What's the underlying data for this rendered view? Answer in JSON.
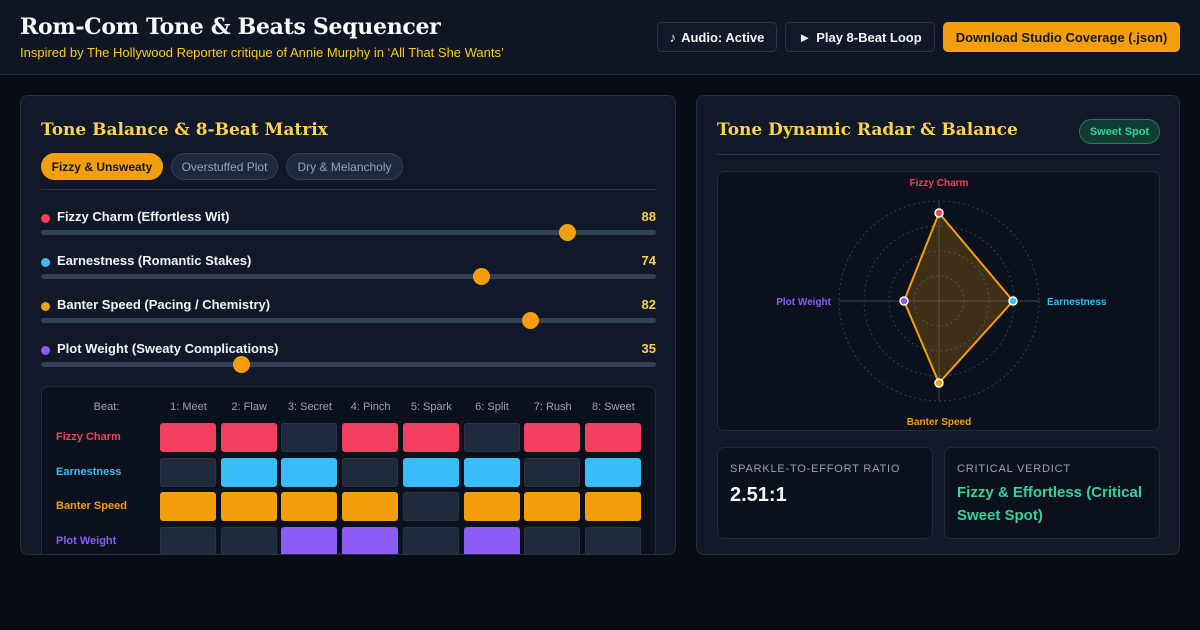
{
  "header": {
    "title": "Rom-Com Tone & Beats Sequencer",
    "subtitle": "Inspired by The Hollywood Reporter critique of Annie Murphy in ‘All That She Wants’",
    "audio_button": "Audio: Active",
    "audio_icon": "music-note-icon",
    "play_button": "Play 8-Beat Loop",
    "play_icon": "play-icon",
    "download_button": "Download Studio Coverage (.json)"
  },
  "left_panel": {
    "title": "Tone Balance & 8-Beat Matrix",
    "presets": [
      {
        "label": "Fizzy & Unsweaty",
        "active": true
      },
      {
        "label": "Overstuffed Plot",
        "active": false
      },
      {
        "label": "Dry & Melancholy",
        "active": false
      }
    ],
    "sliders": [
      {
        "label": "Fizzy Charm (Effortless Wit)",
        "value": 88,
        "color": "#f43f5e"
      },
      {
        "label": "Earnestness (Romantic Stakes)",
        "value": 74,
        "color": "#38bdf8"
      },
      {
        "label": "Banter Speed (Pacing / Chemistry)",
        "value": 82,
        "color": "#f59e0b"
      },
      {
        "label": "Plot Weight (Sweaty Complications)",
        "value": 35,
        "color": "#8b5cf6"
      }
    ],
    "matrix": {
      "corner_label": "Beat:",
      "beats": [
        "1: Meet",
        "2: Flaw",
        "3: Secret",
        "4: Pinch",
        "5: Spark",
        "6: Split",
        "7: Rush",
        "8: Sweet"
      ],
      "rows": [
        {
          "label": "Fizzy Charm",
          "color": "#f43f5e",
          "cells": [
            1,
            1,
            0,
            1,
            1,
            0,
            1,
            1
          ]
        },
        {
          "label": "Earnestness",
          "color": "#38bdf8",
          "cells": [
            0,
            1,
            1,
            0,
            1,
            1,
            0,
            1
          ]
        },
        {
          "label": "Banter Speed",
          "color": "#f59e0b",
          "cells": [
            1,
            1,
            1,
            1,
            0,
            1,
            1,
            1
          ]
        },
        {
          "label": "Plot Weight",
          "color": "#8b5cf6",
          "cells": [
            0,
            0,
            1,
            1,
            0,
            1,
            0,
            0
          ]
        }
      ]
    }
  },
  "right_panel": {
    "title": "Tone Dynamic Radar & Balance",
    "badge": "Sweet Spot",
    "radar": {
      "max": 100,
      "axes": [
        {
          "label": "Fizzy Charm",
          "value": 88,
          "color": "#f43f5e"
        },
        {
          "label": "Earnestness",
          "value": 74,
          "color": "#38bdf8"
        },
        {
          "label": "Banter Speed",
          "value": 82,
          "color": "#f59e0b"
        },
        {
          "label": "Plot Weight",
          "value": 35,
          "color": "#8b5cf6"
        }
      ],
      "fill_color": "#f59e0b"
    },
    "ratio_label": "SPARKLE-TO-EFFORT RATIO",
    "ratio_value": "2.51:1",
    "verdict_label": "CRITICAL VERDICT",
    "verdict_value": "Fizzy & Effortless (Critical Sweet Spot)"
  }
}
